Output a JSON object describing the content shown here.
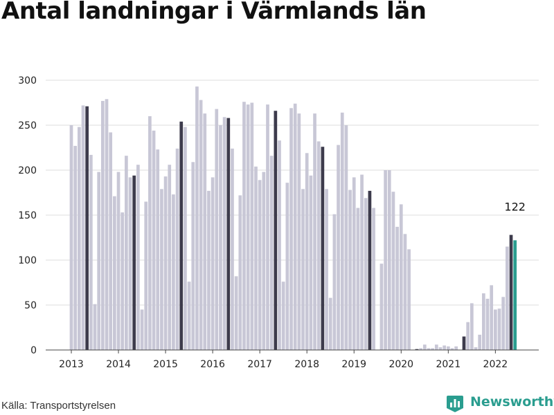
{
  "header": {
    "title": "Antal landningar i Värmlands län"
  },
  "footer": {
    "source": "Källa: Transportstyrelsen",
    "brand": "Newsworthy",
    "brand_icon": "bar-chart-badge-icon"
  },
  "colors": {
    "bar": "#c8c7d6",
    "may": "#3d3b4c",
    "current": "#2a9d8f",
    "grid": "#dddddd",
    "brand": "#2a9d8f"
  },
  "chart_data": {
    "type": "bar",
    "title": "Antal landningar i Värmlands län",
    "xlabel": "",
    "ylabel": "",
    "ylim": [
      0,
      300
    ],
    "yticks": [
      0,
      50,
      100,
      150,
      200,
      250,
      300
    ],
    "grid": true,
    "x_tick_labels": [
      "2013",
      "2014",
      "2015",
      "2016",
      "2017",
      "2018",
      "2019",
      "2020",
      "2021",
      "2022"
    ],
    "start": "2013-01",
    "highlight_month": "May",
    "values": [
      250,
      227,
      248,
      272,
      271,
      217,
      51,
      198,
      277,
      279,
      242,
      171,
      198,
      153,
      216,
      192,
      194,
      206,
      45,
      165,
      260,
      244,
      223,
      179,
      193,
      206,
      173,
      224,
      254,
      248,
      76,
      209,
      293,
      278,
      263,
      177,
      192,
      268,
      250,
      259,
      258,
      224,
      82,
      172,
      276,
      273,
      275,
      204,
      189,
      198,
      273,
      216,
      266,
      233,
      76,
      186,
      269,
      274,
      263,
      179,
      219,
      194,
      263,
      232,
      226,
      179,
      58,
      151,
      228,
      264,
      250,
      178,
      192,
      158,
      195,
      169,
      177,
      158,
      0,
      96,
      200,
      200,
      176,
      137,
      162,
      129,
      112,
      0,
      1,
      2,
      6,
      2,
      2,
      6,
      3,
      5,
      4,
      2,
      4,
      0,
      15,
      31,
      52,
      3,
      17,
      63,
      57,
      72,
      45,
      46,
      59,
      115,
      128,
      122
    ],
    "annotations": [
      {
        "index": 113,
        "label": "122"
      }
    ]
  }
}
